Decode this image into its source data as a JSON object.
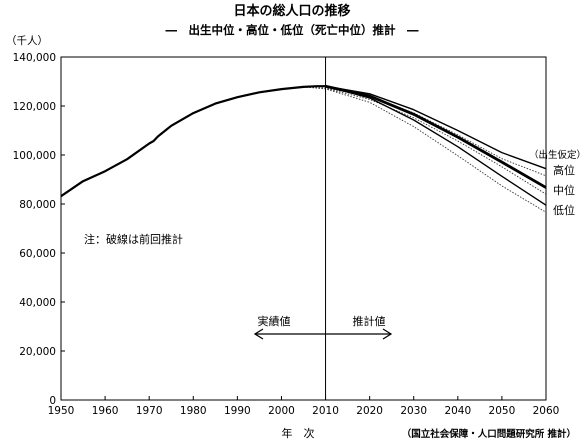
{
  "chart_data": {
    "type": "line",
    "title": "日本の総人口の推移",
    "subtitle": "―　出生中位・高位・低位（死亡中位）推計　―",
    "ylabel": "（千人）",
    "xlabel": "年　次",
    "source": "（国立社会保障・人口問題研究所 推計）",
    "note": "注：破線は前回推計",
    "xlim": [
      1950,
      2060
    ],
    "ylim": [
      0,
      140000
    ],
    "x_ticks": [
      1950,
      1960,
      1970,
      1980,
      1990,
      2000,
      2010,
      2020,
      2030,
      2040,
      2050,
      2060
    ],
    "x_tick_labels": [
      "1950",
      "1960",
      "1970",
      "1980",
      "1990",
      "2000",
      "2010",
      "2020",
      "2030",
      "2040",
      "2050",
      "2060"
    ],
    "y_ticks": [
      0,
      20000,
      40000,
      60000,
      80000,
      100000,
      120000,
      140000
    ],
    "y_tick_labels": [
      "0",
      "20,000",
      "40,000",
      "60,000",
      "80,000",
      "100,000",
      "120,000",
      "140,000"
    ],
    "grid": false,
    "divider_year": 2010,
    "annotation_left": "実績値",
    "annotation_right": "推計値",
    "legend_header": "（出生仮定）",
    "series": [
      {
        "name": "実績値",
        "style": "solid",
        "x": [
          1950,
          1955,
          1960,
          1965,
          1970,
          1971,
          1972,
          1975,
          1980,
          1985,
          1990,
          1995,
          2000,
          2005,
          2008,
          2010
        ],
        "y": [
          83200,
          89300,
          93400,
          98300,
          104700,
          105700,
          107600,
          111900,
          117100,
          121000,
          123600,
          125600,
          126900,
          127800,
          128100,
          128100
        ]
      },
      {
        "name": "高位",
        "style": "solid",
        "x": [
          2010,
          2020,
          2030,
          2040,
          2050,
          2060
        ],
        "y": [
          128100,
          125000,
          118500,
          110000,
          101000,
          94400
        ]
      },
      {
        "name": "中位",
        "style": "bold",
        "x": [
          2010,
          2020,
          2030,
          2040,
          2050,
          2060
        ],
        "y": [
          128100,
          124100,
          116600,
          107300,
          97100,
          86700
        ]
      },
      {
        "name": "低位",
        "style": "solid",
        "x": [
          2010,
          2020,
          2030,
          2040,
          2050,
          2060
        ],
        "y": [
          128100,
          123300,
          114300,
          103400,
          91300,
          79500
        ]
      },
      {
        "name": "高位 (前回推計)",
        "style": "dotted",
        "x": [
          2005,
          2010,
          2020,
          2030,
          2040,
          2050,
          2060
        ],
        "y": [
          127800,
          127300,
          124000,
          117200,
          108200,
          98500,
          91500
        ]
      },
      {
        "name": "中位 (前回推計)",
        "style": "dotted",
        "x": [
          2005,
          2010,
          2020,
          2030,
          2040,
          2050,
          2060
        ],
        "y": [
          127800,
          127200,
          122700,
          115200,
          105700,
          95200,
          84000
        ]
      },
      {
        "name": "低位 (前回推計)",
        "style": "dotted",
        "x": [
          2005,
          2010,
          2020,
          2030,
          2040,
          2050,
          2060
        ],
        "y": [
          127800,
          127000,
          121500,
          111600,
          99700,
          87400,
          76600
        ]
      }
    ],
    "end_labels": [
      {
        "text": "高位",
        "series": "高位"
      },
      {
        "text": "中位",
        "series": "中位"
      },
      {
        "text": "低位",
        "series": "低位"
      }
    ]
  }
}
